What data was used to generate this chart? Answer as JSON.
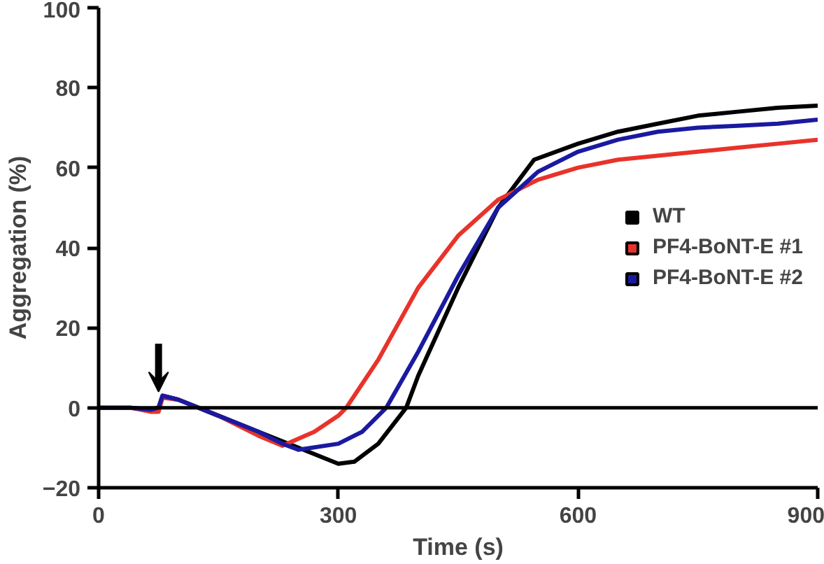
{
  "chart_data": {
    "type": "line",
    "xlabel": "Time (s)",
    "ylabel": "Aggregation (%)",
    "xlim": [
      0,
      900
    ],
    "xticks": [
      0,
      300,
      600,
      900
    ],
    "ylim": [
      -20,
      100
    ],
    "yticks": [
      -20,
      0,
      20,
      40,
      60,
      80,
      100
    ],
    "grid": false,
    "legend": "right",
    "marker": "none",
    "line_style": "solid",
    "ref_lines": [
      {
        "axis": "y",
        "value": 0,
        "label": null,
        "color": "#000000"
      }
    ],
    "series": [
      {
        "name": "WT",
        "color": "#000000",
        "x": [
          0,
          40,
          65,
          75,
          80,
          100,
          150,
          200,
          250,
          300,
          320,
          350,
          385,
          400,
          450,
          500,
          545,
          600,
          650,
          700,
          750,
          800,
          850,
          900
        ],
        "values": [
          0,
          0,
          -0.5,
          0,
          3,
          2,
          -2,
          -6,
          -10,
          -14,
          -13.5,
          -9,
          0,
          8,
          30,
          50,
          62,
          66,
          69,
          71,
          73,
          74,
          75,
          75.5
        ]
      },
      {
        "name": "PF4-BoNT-E #1",
        "color": "#e8332a",
        "x": [
          0,
          40,
          65,
          75,
          80,
          100,
          150,
          200,
          230,
          270,
          300,
          310,
          350,
          400,
          450,
          500,
          550,
          600,
          650,
          700,
          750,
          800,
          850,
          900
        ],
        "values": [
          0,
          0,
          -1,
          -1,
          2.5,
          2,
          -2,
          -7,
          -9.5,
          -6,
          -2,
          0,
          12,
          30,
          43,
          52,
          57,
          60,
          62,
          63,
          64,
          65,
          66,
          67
        ]
      },
      {
        "name": "PF4-BoNT-E #2",
        "color": "#1a1aa0",
        "x": [
          0,
          40,
          65,
          75,
          80,
          100,
          150,
          200,
          230,
          250,
          300,
          330,
          360,
          400,
          450,
          500,
          550,
          600,
          650,
          700,
          750,
          800,
          850,
          900
        ],
        "values": [
          0,
          0,
          -0.5,
          0,
          3,
          2,
          -2,
          -6,
          -9,
          -10.5,
          -9,
          -6,
          0,
          14,
          33,
          50,
          59,
          64,
          67,
          69,
          70,
          70.5,
          71,
          72
        ]
      }
    ]
  }
}
